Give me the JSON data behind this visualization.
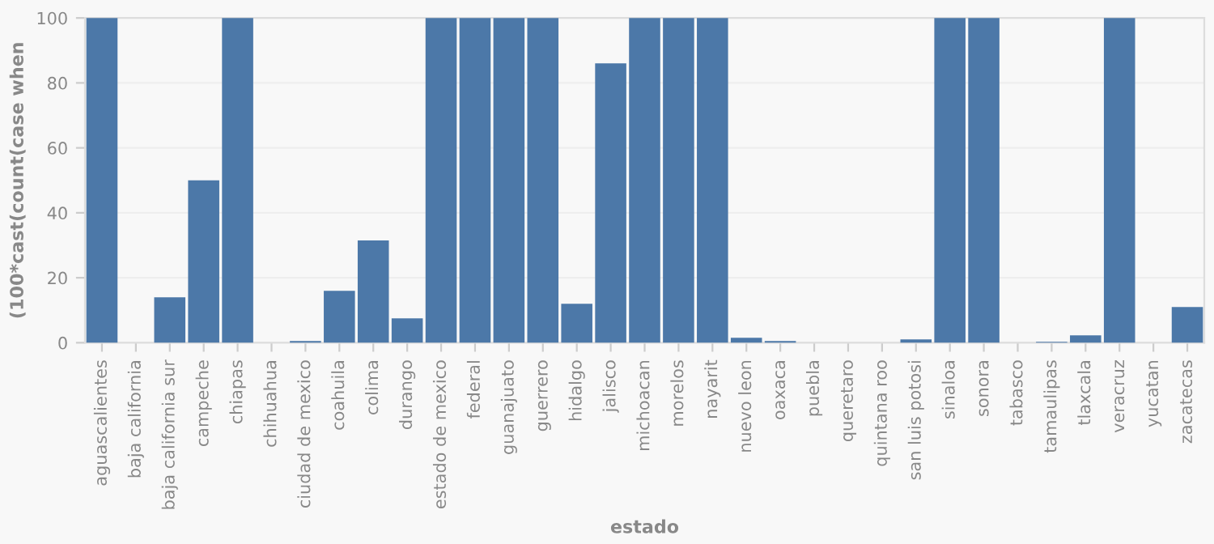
{
  "chart_data": {
    "type": "bar",
    "categories": [
      "aguascalientes",
      "baja california",
      "baja california sur",
      "campeche",
      "chiapas",
      "chihuahua",
      "ciudad de mexico",
      "coahuila",
      "colima",
      "durango",
      "estado de mexico",
      "federal",
      "guanajuato",
      "guerrero",
      "hidalgo",
      "jalisco",
      "michoacan",
      "morelos",
      "nayarit",
      "nuevo leon",
      "oaxaca",
      "puebla",
      "queretaro",
      "quintana roo",
      "san luis potosi",
      "sinaloa",
      "sonora",
      "tabasco",
      "tamaulipas",
      "tlaxcala",
      "veracruz",
      "yucatan",
      "zacatecas"
    ],
    "values": [
      100,
      0,
      14,
      50,
      100,
      0,
      0.5,
      16,
      31.5,
      7.5,
      100,
      100,
      100,
      100,
      12,
      86,
      100,
      100,
      100,
      1.5,
      0.5,
      0,
      0,
      0,
      1,
      100,
      100,
      0,
      0.3,
      2.3,
      100,
      0,
      11
    ],
    "color": "#4c78a8",
    "xlabel": "estado",
    "ylabel": "(100*cast(count(case when",
    "ylim": [
      0,
      100
    ],
    "yticks": [
      0,
      20,
      40,
      60,
      80,
      100
    ],
    "grid": "y",
    "legend": false
  }
}
